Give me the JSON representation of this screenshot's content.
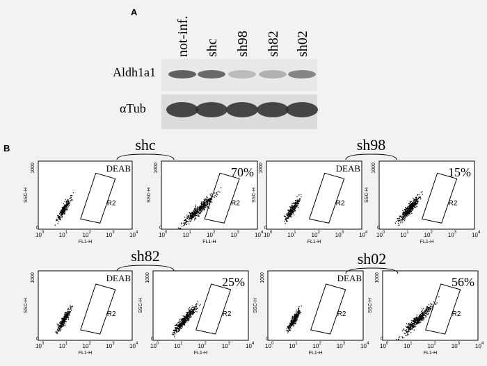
{
  "panel_a": {
    "label": "A",
    "lanes": [
      "not-inf.",
      "shc",
      "sh98",
      "sh82",
      "sh02"
    ],
    "rows": [
      "Aldh1a1",
      "αTub"
    ]
  },
  "panel_b": {
    "label": "B",
    "axis": {
      "y_label": "SSC-H",
      "x_label": "FL1-H",
      "y_ticks": [
        "0",
        "1000"
      ],
      "x_tick_base": "10",
      "x_tick_exponents": [
        "0",
        "1",
        "2",
        "3",
        "4"
      ]
    },
    "control": "DEAB",
    "gate": "R2",
    "groups": [
      {
        "name": "shc",
        "percent": "70%"
      },
      {
        "name": "sh98",
        "percent": "15%"
      },
      {
        "name": "sh82",
        "percent": "25%"
      },
      {
        "name": "sh02",
        "percent": "56%"
      }
    ]
  }
}
